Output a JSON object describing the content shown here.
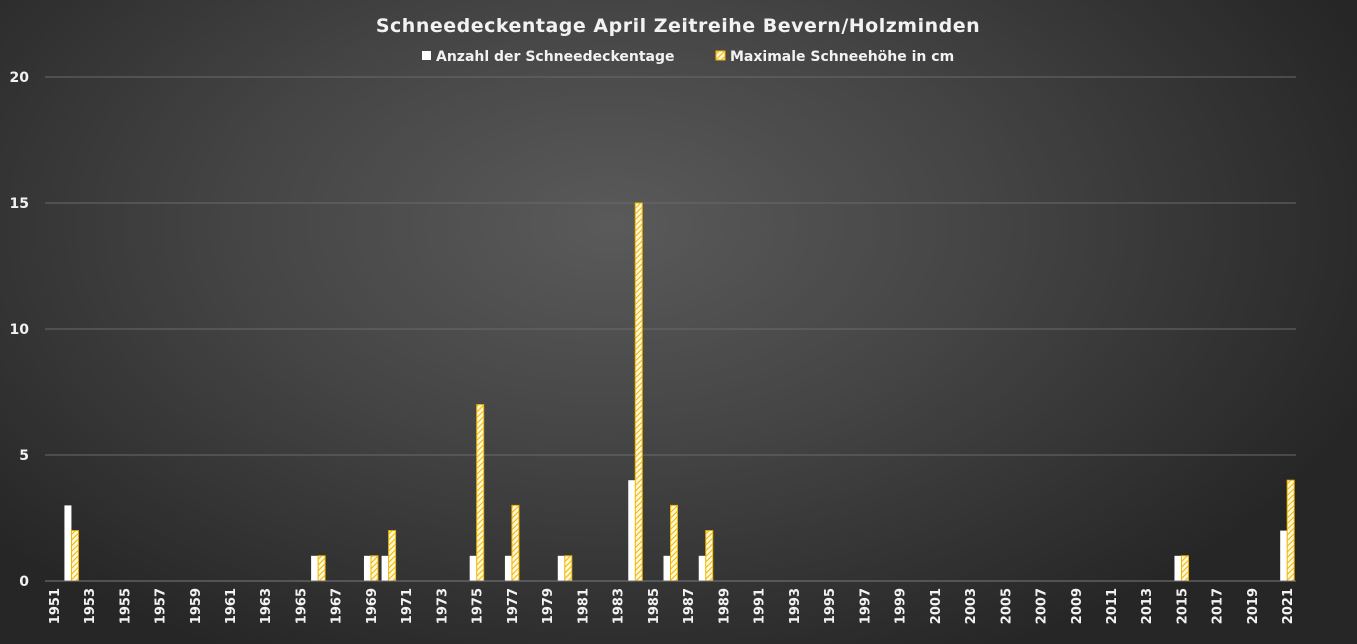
{
  "chart_data": {
    "type": "bar",
    "title": "Schneedeckentage  April Zeitreihe  Bevern/Holzminden",
    "xlabel": "",
    "ylabel": "",
    "ylim": [
      0,
      20
    ],
    "yticks": [
      "0",
      "5",
      "10",
      "15",
      "20"
    ],
    "grid": true,
    "legend_position": "top",
    "categories": [
      "1951",
      "1952",
      "1953",
      "1954",
      "1955",
      "1956",
      "1957",
      "1958",
      "1959",
      "1960",
      "1961",
      "1962",
      "1963",
      "1964",
      "1965",
      "1966",
      "1967",
      "1968",
      "1969",
      "1970",
      "1971",
      "1972",
      "1973",
      "1974",
      "1975",
      "1976",
      "1977",
      "1978",
      "1979",
      "1980",
      "1981",
      "1982",
      "1983",
      "1984",
      "1985",
      "1986",
      "1987",
      "1988",
      "1989",
      "1990",
      "1991",
      "1992",
      "1993",
      "1994",
      "1995",
      "1996",
      "1997",
      "1998",
      "1999",
      "2000",
      "2001",
      "2002",
      "2003",
      "2004",
      "2005",
      "2006",
      "2007",
      "2008",
      "2009",
      "2010",
      "2011",
      "2012",
      "2013",
      "2014",
      "2015",
      "2016",
      "2017",
      "2018",
      "2019",
      "2020",
      "2021"
    ],
    "x_tick_labels": [
      "1951",
      "1953",
      "1955",
      "1957",
      "1959",
      "1961",
      "1963",
      "1965",
      "1967",
      "1969",
      "1971",
      "1973",
      "1975",
      "1977",
      "1979",
      "1981",
      "1983",
      "1985",
      "1987",
      "1989",
      "1991",
      "1993",
      "1995",
      "1997",
      "1999",
      "2001",
      "2003",
      "2005",
      "2007",
      "2009",
      "2011",
      "2013",
      "2015",
      "2017",
      "2019",
      "2021"
    ],
    "series": [
      {
        "name": "Anzahl der Schneedeckentage",
        "color": "#ffffff",
        "values": [
          0,
          3,
          0,
          0,
          0,
          0,
          0,
          0,
          0,
          0,
          0,
          0,
          0,
          0,
          0,
          1,
          0,
          0,
          1,
          1,
          0,
          0,
          0,
          0,
          1,
          0,
          1,
          0,
          0,
          1,
          0,
          0,
          0,
          4,
          0,
          1,
          0,
          1,
          0,
          0,
          0,
          0,
          0,
          0,
          0,
          0,
          0,
          0,
          0,
          0,
          0,
          0,
          0,
          0,
          0,
          0,
          0,
          0,
          0,
          0,
          0,
          0,
          0,
          0,
          1,
          0,
          0,
          0,
          0,
          0,
          2
        ]
      },
      {
        "name": "Maximale Schneehöhe in cm",
        "color": "#f0b400",
        "values": [
          0,
          2,
          0,
          0,
          0,
          0,
          0,
          0,
          0,
          0,
          0,
          0,
          0,
          0,
          0,
          1,
          0,
          0,
          1,
          2,
          0,
          0,
          0,
          0,
          7,
          0,
          3,
          0,
          0,
          1,
          0,
          0,
          0,
          15,
          0,
          3,
          0,
          2,
          0,
          0,
          0,
          0,
          0,
          0,
          0,
          0,
          0,
          0,
          0,
          0,
          0,
          0,
          0,
          0,
          0,
          0,
          0,
          0,
          0,
          0,
          0,
          0,
          0,
          0,
          1,
          0,
          0,
          0,
          0,
          0,
          4
        ]
      }
    ]
  }
}
